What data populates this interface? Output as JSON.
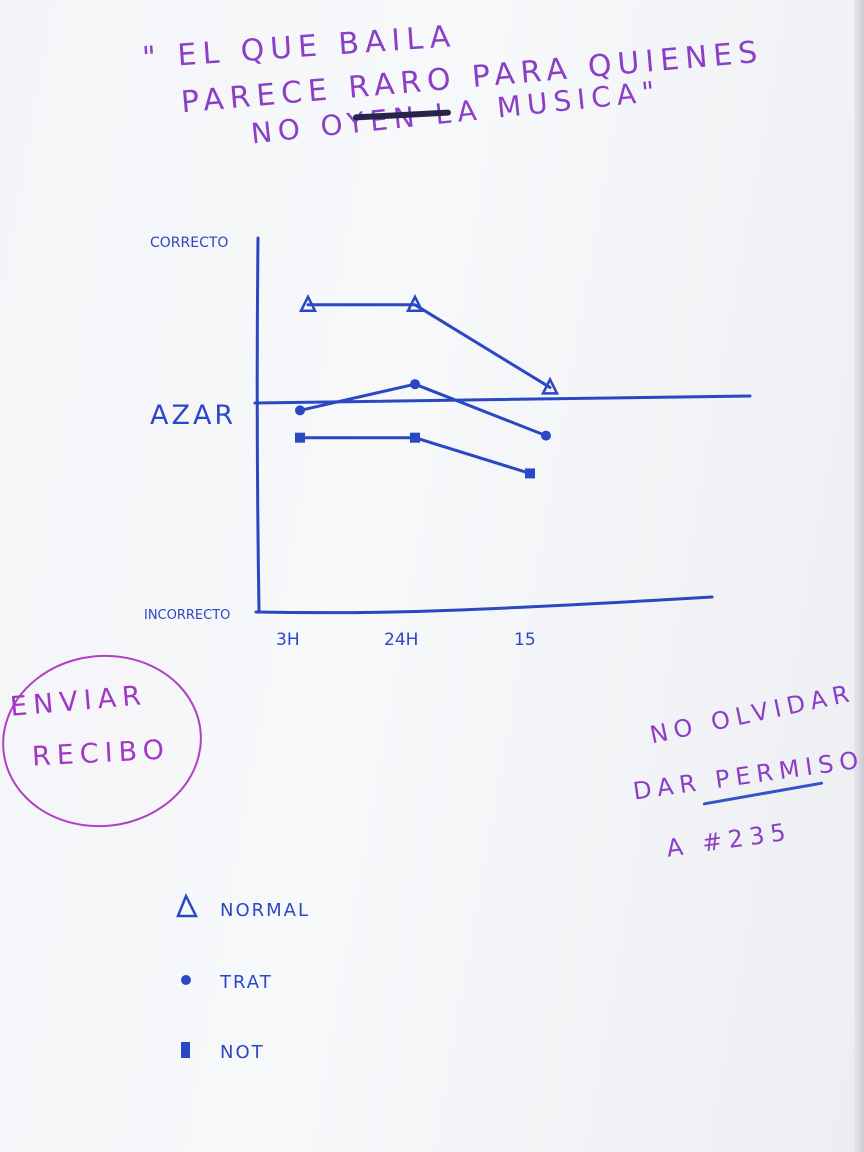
{
  "quote": {
    "line1": "\" EL QUE BAILA",
    "line2": "PARECE RARO PARA QUIENES",
    "line3": "NO OYEN LA   MUSICA\""
  },
  "note_receipt": {
    "line1": "ENVIAR",
    "line2": "RECIBO"
  },
  "note_permissions": {
    "line1": "NO OLVIDAR",
    "line2": "DAR PERMISOS",
    "line3": "A #235"
  },
  "colors": {
    "ink_blue": "#2a47c4",
    "ink_purple": "#8a3fc6",
    "ink_magenta": "#a137c3"
  },
  "chart_data": {
    "type": "line",
    "y_scale": "categorical",
    "y_levels": [
      "INCORRECTO",
      "AZAR",
      "CORRECTO"
    ],
    "categories": [
      "3H",
      "24H",
      "15"
    ],
    "series": [
      {
        "name": "NORMAL",
        "marker": "triangle",
        "values": [
          1.6,
          1.6,
          1.09
        ]
      },
      {
        "name": "TRAT",
        "marker": "circle",
        "values": [
          0.96,
          1.11,
          0.84
        ]
      },
      {
        "name": "NOT",
        "marker": "square",
        "values": [
          0.83,
          0.83,
          0.66
        ]
      }
    ],
    "reference_line": {
      "label": "AZAR",
      "value": 1.0
    },
    "legend": {
      "placement": "bottom-left"
    },
    "grid": false
  }
}
